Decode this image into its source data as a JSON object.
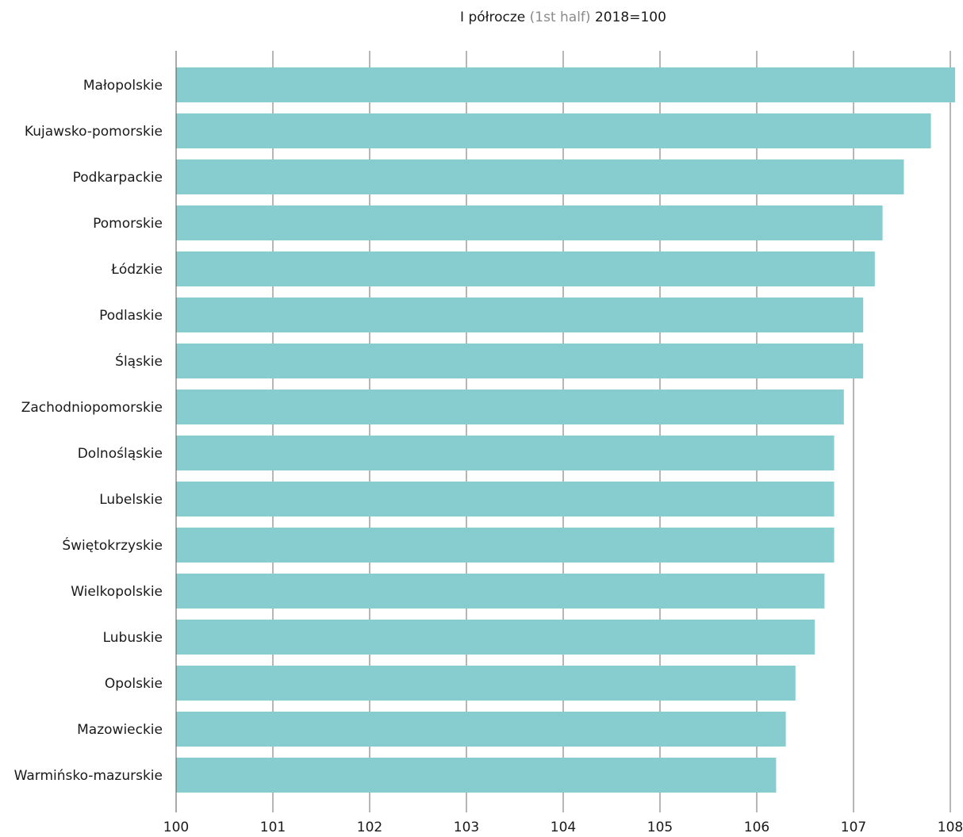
{
  "chart_data": {
    "type": "bar",
    "orientation": "horizontal",
    "title": {
      "part1": "I półrocze",
      "part2": "(1st half)",
      "part3": "2018=100"
    },
    "categories": [
      "Małopolskie",
      "Kujawsko-pomorskie",
      "Podkarpackie",
      "Pomorskie",
      "Łódzkie",
      "Podlaskie",
      "Śląskie",
      "Zachodniopomorskie",
      "Dolnośląskie",
      "Lubelskie",
      "Świętokrzyskie",
      "Wielkopolskie",
      "Lubuskie",
      "Opolskie",
      "Mazowieckie",
      "Warmińsko-mazurskie"
    ],
    "values": [
      108.05,
      107.8,
      107.52,
      107.3,
      107.22,
      107.1,
      107.1,
      106.9,
      106.8,
      106.8,
      106.8,
      106.7,
      106.6,
      106.4,
      106.3,
      106.2
    ],
    "xlim": [
      100,
      108
    ],
    "ticks": [
      "100",
      "101",
      "102",
      "103",
      "104",
      "105",
      "106",
      "107",
      "108"
    ],
    "grid": true,
    "bar_color": "#87cdd0",
    "grid_color": "#6e6e6e"
  }
}
